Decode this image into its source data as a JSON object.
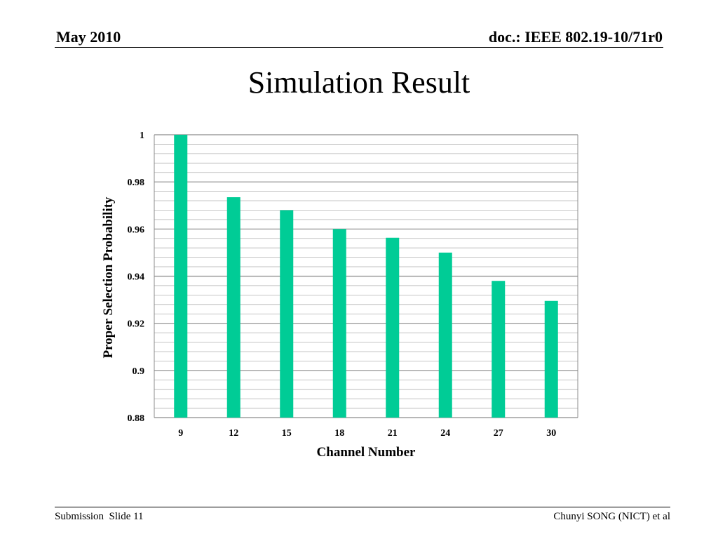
{
  "header": {
    "date": "May 2010",
    "doc": "doc.: IEEE 802.19-10/71r0"
  },
  "slide": {
    "title": "Simulation Result"
  },
  "footer": {
    "submission": "Submission",
    "slide_label": "Slide 11",
    "author": "Chunyi SONG (NICT) et al"
  },
  "colors": {
    "bar": "#00CC96",
    "grid": "#b3b3b3"
  },
  "chart_data": {
    "type": "bar",
    "categories": [
      "9",
      "12",
      "15",
      "18",
      "21",
      "24",
      "27",
      "30"
    ],
    "values": [
      1.0,
      0.9735,
      0.968,
      0.96,
      0.9563,
      0.95,
      0.938,
      0.9295
    ],
    "xlabel": "Channel Number",
    "ylabel": "Proper Selection Probability",
    "ylim": [
      0.88,
      1.0
    ],
    "yticks": [
      "0.88",
      "0.9",
      "0.92",
      "0.94",
      "0.96",
      "0.98",
      "1"
    ],
    "grid": true,
    "legend": "none"
  }
}
